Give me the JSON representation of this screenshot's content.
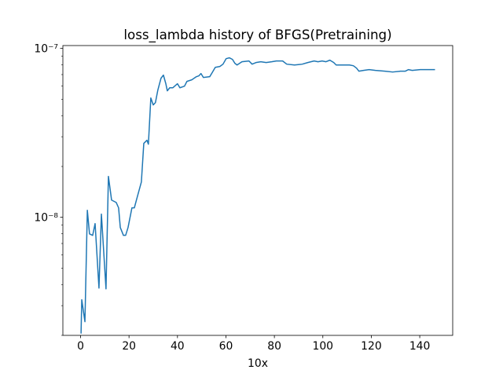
{
  "chart_data": {
    "type": "line",
    "title": "loss_lambda history of BFGS(Pretraining)",
    "xlabel": "10x",
    "log_y": true,
    "x": [
      0.2,
      0.5,
      1.8,
      2.8,
      3.7,
      5.0,
      6.0,
      7.6,
      8.6,
      10.5,
      11.5,
      12.8,
      14.7,
      15.7,
      16.4,
      17.7,
      18.6,
      19.6,
      21.2,
      22.2,
      23.5,
      25.1,
      26.1,
      27.4,
      28.0,
      29.0,
      30.0,
      30.9,
      31.9,
      33.2,
      34.2,
      35.2,
      35.8,
      36.8,
      38.1,
      40.0,
      41.0,
      42.9,
      43.9,
      45.9,
      47.8,
      48.8,
      49.7,
      50.7,
      53.3,
      54.3,
      55.6,
      57.5,
      58.8,
      60.1,
      61.4,
      62.7,
      63.7,
      64.6,
      66.6,
      69.5,
      70.8,
      72.4,
      74.4,
      76.6,
      78.9,
      80.8,
      83.4,
      85.1,
      88.3,
      91.5,
      93.8,
      96.4,
      98.0,
      99.7,
      101.3,
      102.9,
      104.5,
      105.5,
      111.0,
      112.6,
      113.9,
      114.9,
      116.8,
      119.1,
      121.7,
      125.6,
      128.8,
      132.0,
      134.0,
      135.3,
      136.9,
      140.2,
      143.4,
      146.3
    ],
    "series": [
      {
        "color": "#1f77b4",
        "values": [
          2.05e-09,
          3.25e-09,
          2.41e-09,
          1.1e-08,
          7.98e-09,
          7.82e-09,
          9.18e-09,
          3.81e-09,
          1.044e-08,
          3.77e-09,
          1.746e-08,
          1.265e-08,
          1.225e-08,
          1.138e-08,
          8.7e-09,
          7.82e-09,
          7.82e-09,
          8.7e-09,
          1.138e-08,
          1.138e-08,
          1.336e-08,
          1.62e-08,
          2.74e-08,
          2.86e-08,
          2.71e-08,
          5.09e-08,
          4.63e-08,
          4.78e-08,
          5.67e-08,
          6.66e-08,
          6.95e-08,
          6.18e-08,
          5.61e-08,
          5.85e-08,
          5.85e-08,
          6.18e-08,
          5.85e-08,
          5.98e-08,
          6.38e-08,
          6.52e-08,
          6.8e-08,
          6.88e-08,
          7.1e-08,
          6.73e-08,
          6.8e-08,
          7.18e-08,
          7.73e-08,
          7.82e-08,
          8.07e-08,
          8.7e-08,
          8.8e-08,
          8.61e-08,
          8.16e-08,
          7.98e-08,
          8.34e-08,
          8.43e-08,
          8.07e-08,
          8.25e-08,
          8.34e-08,
          8.25e-08,
          8.34e-08,
          8.43e-08,
          8.43e-08,
          8.07e-08,
          7.98e-08,
          8.07e-08,
          8.25e-08,
          8.43e-08,
          8.34e-08,
          8.43e-08,
          8.34e-08,
          8.52e-08,
          8.25e-08,
          7.98e-08,
          7.98e-08,
          7.9e-08,
          7.65e-08,
          7.33e-08,
          7.41e-08,
          7.49e-08,
          7.41e-08,
          7.33e-08,
          7.25e-08,
          7.33e-08,
          7.33e-08,
          7.49e-08,
          7.41e-08,
          7.49e-08,
          7.49e-08,
          7.49e-08
        ]
      }
    ],
    "xlim": [
      -7.3,
      153.6
    ],
    "xticks": [
      0,
      20,
      40,
      60,
      80,
      100,
      120,
      140
    ],
    "ylim": [
      2e-09,
      1.04e-07
    ],
    "yticks": [
      {
        "value": 1e-08,
        "label": "10⁻⁸"
      },
      {
        "value": 1e-07,
        "label": "10⁻⁷"
      }
    ],
    "yminorticks": [
      2e-09,
      3e-09,
      4e-09,
      5e-09,
      6e-09,
      7e-09,
      8e-09,
      9e-09,
      2e-08,
      3e-08,
      4e-08,
      5e-08,
      6e-08,
      7e-08,
      8e-08,
      9e-08
    ]
  }
}
